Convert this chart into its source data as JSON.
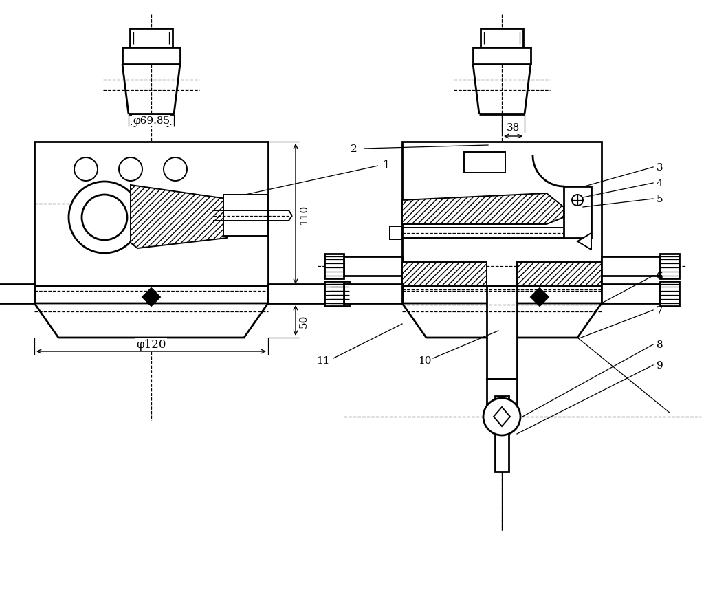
{
  "title": "",
  "bg_color": "#ffffff",
  "line_color": "#000000",
  "fig_width": 10.24,
  "fig_height": 8.62,
  "dpi": 100,
  "annotations": {
    "phi_6985": "φ69.85",
    "phi_120": "φ120",
    "dim_110": "110",
    "dim_50": "50",
    "dim_38": "38",
    "label_1": "1",
    "label_2": "2",
    "label_3": "3",
    "label_4": "4",
    "label_5": "5",
    "label_6": "6",
    "label_7": "7",
    "label_8": "8",
    "label_9": "9",
    "label_10": "10",
    "label_11": "11"
  },
  "LCX": 220,
  "RCX": 730,
  "lw_thick": 2.0,
  "lw_med": 1.4,
  "lw_thin": 0.9
}
